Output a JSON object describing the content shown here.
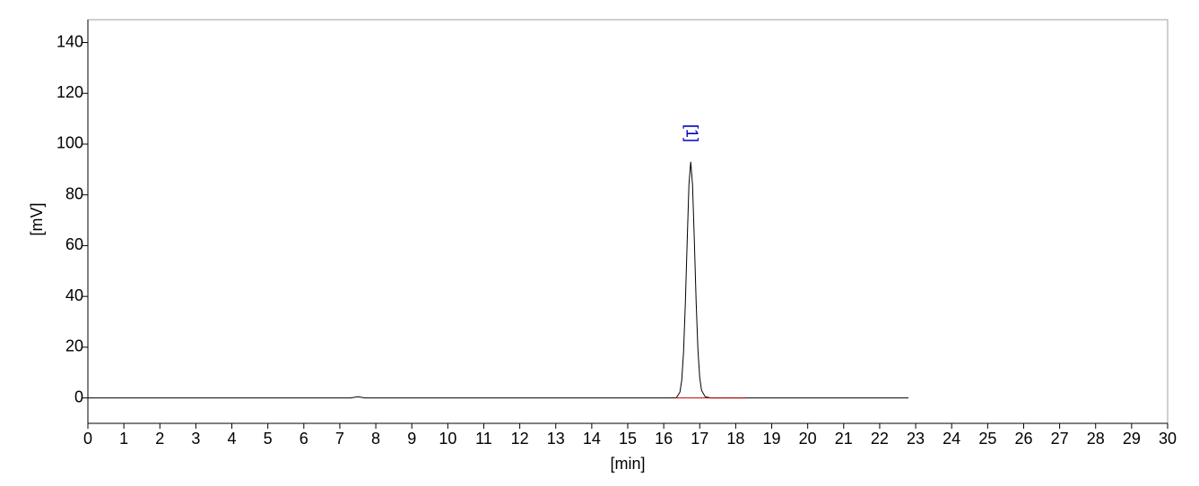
{
  "chart_data": {
    "type": "line",
    "xlabel": "[min]",
    "ylabel": "[mV]",
    "xlim": [
      0,
      30
    ],
    "ylim": [
      -10,
      149
    ],
    "xticks": [
      0,
      1,
      2,
      3,
      4,
      5,
      6,
      7,
      8,
      9,
      10,
      11,
      12,
      13,
      14,
      15,
      16,
      17,
      18,
      19,
      20,
      21,
      22,
      23,
      24,
      25,
      26,
      27,
      28,
      29,
      30
    ],
    "yticks": [
      0,
      20,
      40,
      60,
      80,
      100,
      120,
      140
    ],
    "series": [
      {
        "color": "#000000",
        "x": [
          0,
          7.3,
          7.5,
          7.7,
          16.2,
          16.35,
          16.45,
          16.5,
          16.55,
          16.6,
          16.65,
          16.7,
          16.75,
          16.8,
          16.85,
          16.9,
          16.95,
          17.0,
          17.05,
          17.15,
          17.3,
          22.8
        ],
        "values": [
          0,
          0,
          0.5,
          0,
          0,
          0.1,
          2.3,
          7,
          18,
          37,
          61,
          84,
          93,
          84,
          62,
          38,
          19,
          8,
          3,
          0.5,
          0,
          0
        ]
      },
      {
        "color": "#c00000",
        "x": [
          16.3,
          18.3
        ],
        "values": [
          0,
          0
        ]
      }
    ],
    "annotations": [
      {
        "text": "[1]",
        "x": 16.75,
        "color": "#0000c0"
      }
    ]
  }
}
